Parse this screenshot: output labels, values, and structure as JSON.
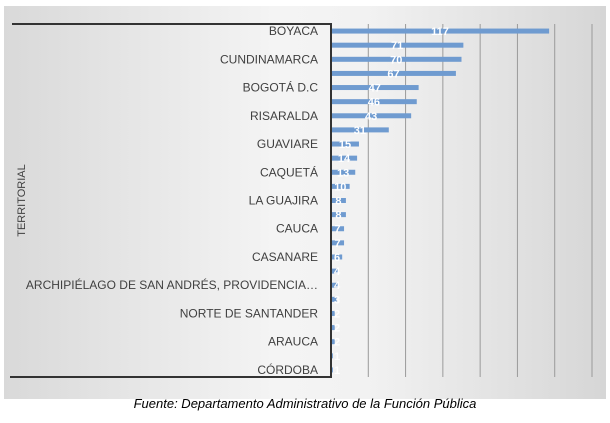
{
  "chart_data": {
    "type": "bar",
    "orientation": "horizontal",
    "title": "",
    "ylabel": "TERRITORIAL",
    "xlabel": "",
    "categories": [
      "BOYACA",
      "",
      "CUNDINAMARCA",
      "",
      "BOGOTÁ D.C",
      "",
      "RISARALDA",
      "",
      "GUAVIARE",
      "",
      "CAQUETÁ",
      "",
      "LA GUAJIRA",
      "",
      "CAUCA",
      "",
      "CASANARE",
      "",
      "ARCHIPIÉLAGO DE SAN ANDRÉS, PROVIDENCIA…",
      "",
      "NORTE DE SANTANDER",
      "",
      "ARAUCA",
      "",
      "CÓRDOBA"
    ],
    "values": [
      117,
      71,
      70,
      67,
      47,
      46,
      43,
      31,
      15,
      14,
      13,
      10,
      8,
      8,
      7,
      7,
      6,
      4,
      4,
      3,
      2,
      2,
      2,
      1,
      1
    ],
    "xlim": [
      0,
      140
    ],
    "grid": "vertical",
    "data_labels": true,
    "bar_color": "#6f9bd0",
    "legend": "none"
  },
  "caption": "Fuente: Departamento Administrativo de la Función Pública"
}
